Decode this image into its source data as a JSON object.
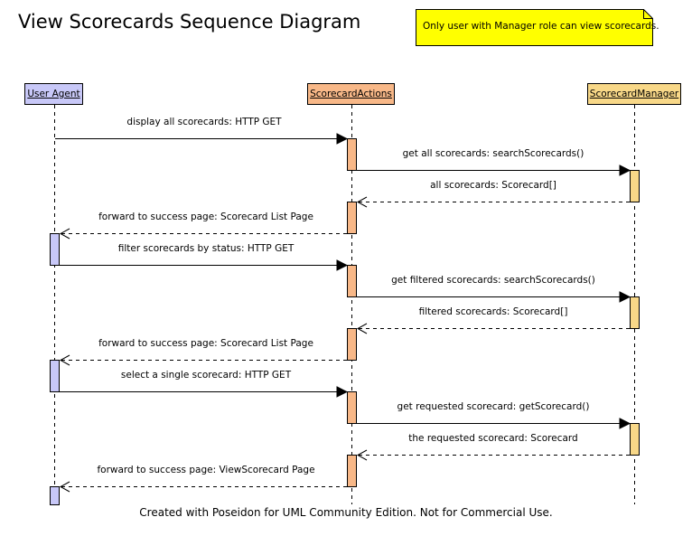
{
  "title": "View Scorecards Sequence Diagram",
  "note": "Only user with Manager role can view scorecards.",
  "actors": {
    "user_agent": "User Agent",
    "scorecard_actions": "ScorecardActions",
    "scorecard_manager": "ScorecardManager"
  },
  "messages": [
    "display all scorecards: HTTP GET",
    "get all scorecards: searchScorecards()",
    "all scorecards: Scorecard[]",
    "forward to success page: Scorecard List Page",
    "filter scorecards by status: HTTP GET",
    "get filtered scorecards: searchScorecards()",
    "filtered scorecards: Scorecard[]",
    "forward to success page: Scorecard List Page",
    "select a single scorecard: HTTP GET",
    "get requested scorecard: getScorecard()",
    "the requested scorecard: Scorecard",
    "forward to success page: ViewScorecard Page"
  ],
  "footer": "Created with Poseidon for UML Community Edition. Not for Commercial Use.",
  "colors": {
    "user_agent": "#c8c8f8",
    "scorecard_actions": "#f8b888",
    "scorecard_manager": "#f8d888",
    "note": "#ffff00"
  }
}
